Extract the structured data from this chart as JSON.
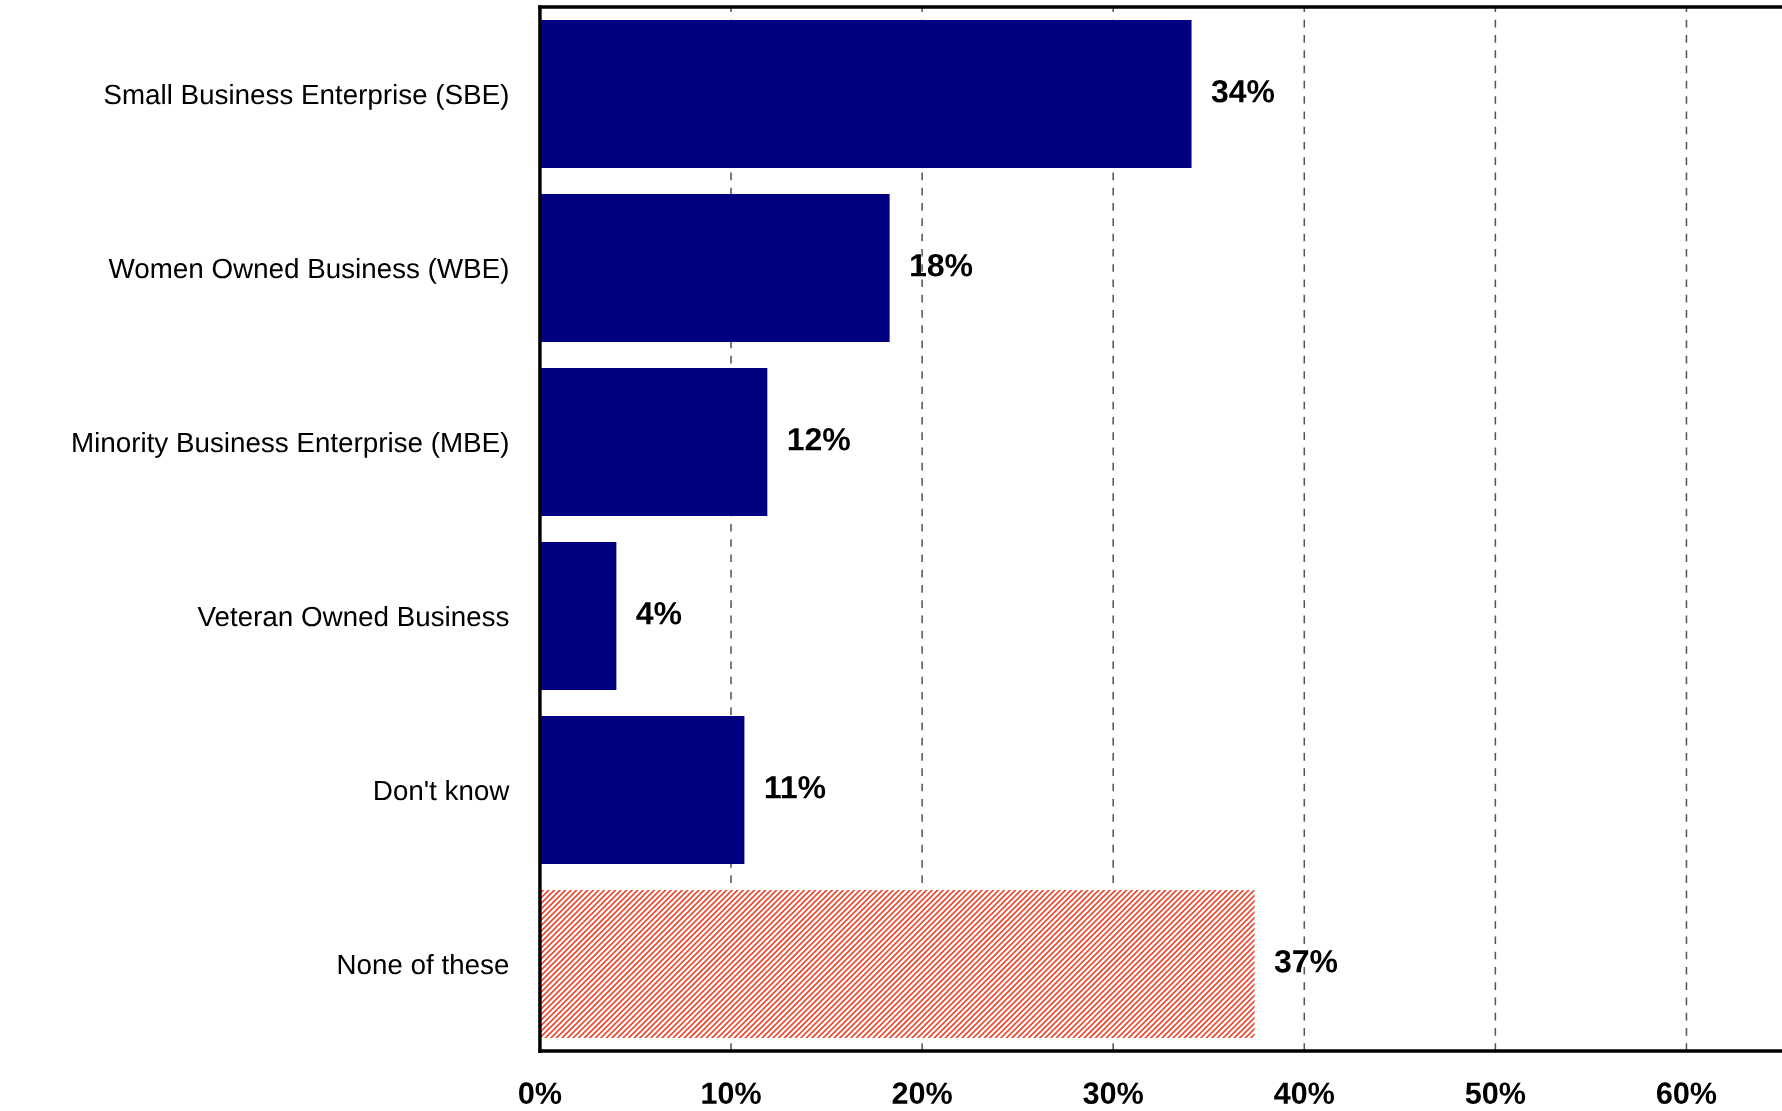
{
  "chart_data": {
    "type": "bar",
    "orientation": "horizontal",
    "categories": [
      "Small Business Enterprise (SBE)",
      "Women Owned Business (WBE)",
      "Minority Business Enterprise (MBE)",
      "Veteran Owned Business",
      "Don't know",
      "None of these"
    ],
    "values": [
      34.1,
      18.3,
      11.9,
      4,
      10.7,
      37.4
    ],
    "value_labels": [
      "34%",
      "18%",
      "12%",
      "4%",
      "11%",
      "37%"
    ],
    "colors": [
      "#000080",
      "#000080",
      "#000080",
      "#000080",
      "#000080",
      "#e8472e"
    ],
    "xlim": [
      0,
      65
    ],
    "xticks": [
      {
        "value": 0,
        "label": "0%"
      },
      {
        "value": 10,
        "label": "10%"
      },
      {
        "value": 20,
        "label": "20%"
      },
      {
        "value": 30,
        "label": "30%"
      },
      {
        "value": 40,
        "label": "40%"
      },
      {
        "value": 50,
        "label": "50%"
      },
      {
        "value": 60,
        "label": "60%"
      }
    ],
    "grid": "x",
    "legend": false
  }
}
